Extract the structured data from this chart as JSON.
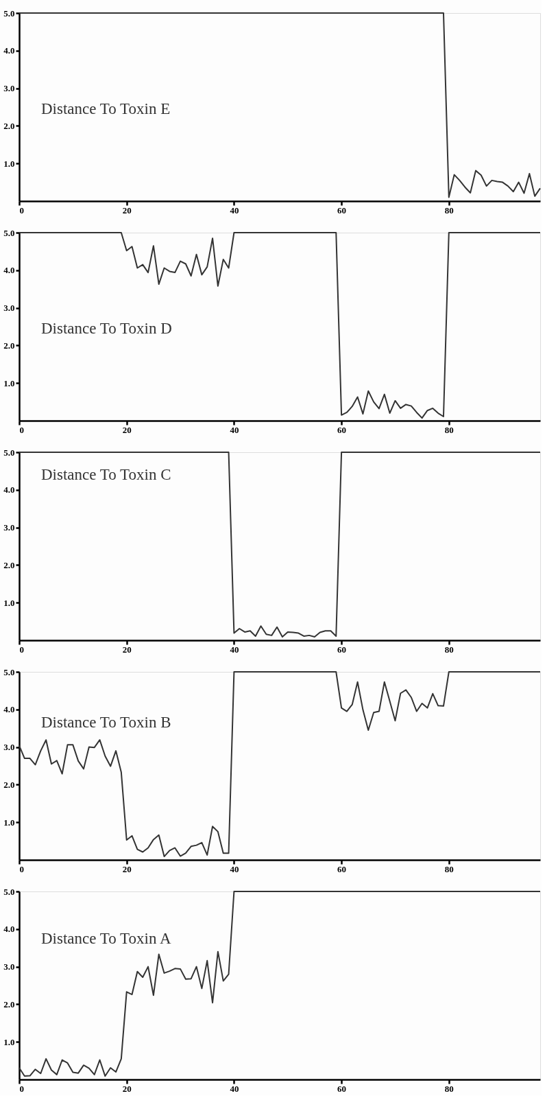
{
  "chart_data": [
    {
      "type": "line",
      "title": "Distance To Toxin E",
      "x": [
        0,
        1,
        2,
        3,
        4,
        5,
        6,
        7,
        8,
        9,
        10,
        11,
        12,
        13,
        14,
        15,
        16,
        17,
        18,
        19,
        20,
        21,
        22,
        23,
        24,
        25,
        26,
        27,
        28,
        29,
        30,
        31,
        32,
        33,
        34,
        35,
        36,
        37,
        38,
        39,
        40,
        41,
        42,
        43,
        44,
        45,
        46,
        47,
        48,
        49,
        50,
        51,
        52,
        53,
        54,
        55,
        56,
        57,
        58,
        59,
        60,
        61,
        62,
        63,
        64,
        65,
        66,
        67,
        68,
        69,
        70,
        71,
        72,
        73,
        74,
        75,
        76,
        77,
        78,
        79,
        80,
        81,
        82,
        83,
        84,
        85,
        86,
        87,
        88,
        89,
        90,
        91,
        92,
        93,
        94,
        95,
        96,
        97
      ],
      "series": [
        {
          "color": "#333333",
          "values": [
            5,
            5,
            5,
            5,
            5,
            5,
            5,
            5,
            5,
            5,
            5,
            5,
            5,
            5,
            5,
            5,
            5,
            5,
            5,
            5,
            5,
            5,
            5,
            5,
            5,
            5,
            5,
            5,
            5,
            5,
            5,
            5,
            5,
            5,
            5,
            5,
            5,
            5,
            5,
            5,
            5,
            5,
            5,
            5,
            5,
            5,
            5,
            5,
            5,
            5,
            5,
            5,
            5,
            5,
            5,
            5,
            5,
            5,
            5,
            5,
            5,
            5,
            5,
            5,
            5,
            5,
            5,
            5,
            5,
            5,
            5,
            5,
            5,
            5,
            5,
            5,
            5,
            5,
            5,
            5,
            0.1,
            0.7,
            0.55,
            0.37,
            0.22,
            0.81,
            0.69,
            0.4,
            0.55,
            0.52,
            0.5,
            0.4,
            0.25,
            0.5,
            0.21,
            0.73,
            0.13,
            0.34
          ]
        }
      ],
      "xlim": [
        0,
        97
      ],
      "ylim": [
        0,
        5
      ],
      "xticks": [
        0,
        20,
        40,
        60,
        80
      ],
      "yticks": [
        {
          "value": 1,
          "label": "1.0"
        },
        {
          "value": 2,
          "label": "2.0"
        },
        {
          "value": 3,
          "label": "3.0"
        },
        {
          "value": 4,
          "label": "4.0"
        },
        {
          "value": 5,
          "label": "5.0"
        }
      ]
    },
    {
      "type": "line",
      "title": "Distance To Toxin D",
      "x": [
        0,
        1,
        2,
        3,
        4,
        5,
        6,
        7,
        8,
        9,
        10,
        11,
        12,
        13,
        14,
        15,
        16,
        17,
        18,
        19,
        20,
        21,
        22,
        23,
        24,
        25,
        26,
        27,
        28,
        29,
        30,
        31,
        32,
        33,
        34,
        35,
        36,
        37,
        38,
        39,
        40,
        41,
        42,
        43,
        44,
        45,
        46,
        47,
        48,
        49,
        50,
        51,
        52,
        53,
        54,
        55,
        56,
        57,
        58,
        59,
        60,
        61,
        62,
        63,
        64,
        65,
        66,
        67,
        68,
        69,
        70,
        71,
        72,
        73,
        74,
        75,
        76,
        77,
        78,
        79,
        80,
        81,
        82,
        83,
        84,
        85,
        86,
        87,
        88,
        89,
        90,
        91,
        92,
        93,
        94,
        95,
        96,
        97
      ],
      "series": [
        {
          "color": "#333333",
          "values": [
            5,
            5,
            5,
            5,
            5,
            5,
            5,
            5,
            5,
            5,
            5,
            5,
            5,
            5,
            5,
            5,
            5,
            5,
            5,
            5,
            4.52,
            4.63,
            4.06,
            4.15,
            3.94,
            4.65,
            3.63,
            4.06,
            3.97,
            3.94,
            4.24,
            4.17,
            3.85,
            4.42,
            3.88,
            4.09,
            4.85,
            3.58,
            4.29,
            4.06,
            5,
            5,
            5,
            5,
            5,
            5,
            5,
            5,
            5,
            5,
            5,
            5,
            5,
            5,
            5,
            5,
            5,
            5,
            5,
            5,
            0.15,
            0.22,
            0.38,
            0.63,
            0.18,
            0.79,
            0.5,
            0.32,
            0.7,
            0.2,
            0.53,
            0.33,
            0.43,
            0.39,
            0.22,
            0.07,
            0.27,
            0.33,
            0.2,
            0.11,
            5,
            5,
            5,
            5,
            5,
            5,
            5,
            5,
            5,
            5,
            5,
            5,
            5,
            5,
            5,
            5,
            5,
            5
          ]
        }
      ],
      "xlim": [
        0,
        97
      ],
      "ylim": [
        0,
        5
      ],
      "xticks": [
        0,
        20,
        40,
        60,
        80
      ],
      "yticks": [
        {
          "value": 1,
          "label": "1.0"
        },
        {
          "value": 2,
          "label": "2.0"
        },
        {
          "value": 3,
          "label": "3.0"
        },
        {
          "value": 4,
          "label": "4.0"
        },
        {
          "value": 5,
          "label": "5.0"
        }
      ]
    },
    {
      "type": "line",
      "title": "Distance To Toxin C",
      "x": [
        0,
        1,
        2,
        3,
        4,
        5,
        6,
        7,
        8,
        9,
        10,
        11,
        12,
        13,
        14,
        15,
        16,
        17,
        18,
        19,
        20,
        21,
        22,
        23,
        24,
        25,
        26,
        27,
        28,
        29,
        30,
        31,
        32,
        33,
        34,
        35,
        36,
        37,
        38,
        39,
        40,
        41,
        42,
        43,
        44,
        45,
        46,
        47,
        48,
        49,
        50,
        51,
        52,
        53,
        54,
        55,
        56,
        57,
        58,
        59,
        60,
        61,
        62,
        63,
        64,
        65,
        66,
        67,
        68,
        69,
        70,
        71,
        72,
        73,
        74,
        75,
        76,
        77,
        78,
        79,
        80,
        81,
        82,
        83,
        84,
        85,
        86,
        87,
        88,
        89,
        90,
        91,
        92,
        93,
        94,
        95,
        96,
        97
      ],
      "series": [
        {
          "color": "#333333",
          "values": [
            5,
            5,
            5,
            5,
            5,
            5,
            5,
            5,
            5,
            5,
            5,
            5,
            5,
            5,
            5,
            5,
            5,
            5,
            5,
            5,
            5,
            5,
            5,
            5,
            5,
            5,
            5,
            5,
            5,
            5,
            5,
            5,
            5,
            5,
            5,
            5,
            5,
            5,
            5,
            5,
            0.19,
            0.31,
            0.22,
            0.25,
            0.11,
            0.38,
            0.16,
            0.13,
            0.35,
            0.09,
            0.22,
            0.21,
            0.19,
            0.11,
            0.13,
            0.09,
            0.21,
            0.25,
            0.25,
            0.11,
            5,
            5,
            5,
            5,
            5,
            5,
            5,
            5,
            5,
            5,
            5,
            5,
            5,
            5,
            5,
            5,
            5,
            5,
            5,
            5,
            5,
            5,
            5,
            5,
            5,
            5,
            5,
            5,
            5,
            5,
            5,
            5,
            5,
            5,
            5,
            5,
            5,
            5
          ]
        }
      ],
      "xlim": [
        0,
        97
      ],
      "ylim": [
        0,
        5
      ],
      "xticks": [
        0,
        20,
        40,
        60,
        80
      ],
      "yticks": [
        {
          "value": 1,
          "label": "1.0"
        },
        {
          "value": 2,
          "label": "2.0"
        },
        {
          "value": 3,
          "label": "3.0"
        },
        {
          "value": 4,
          "label": "4.0"
        },
        {
          "value": 5,
          "label": "5.0"
        }
      ]
    },
    {
      "type": "line",
      "title": "Distance To Toxin B",
      "x": [
        0,
        1,
        2,
        3,
        4,
        5,
        6,
        7,
        8,
        9,
        10,
        11,
        12,
        13,
        14,
        15,
        16,
        17,
        18,
        19,
        20,
        21,
        22,
        23,
        24,
        25,
        26,
        27,
        28,
        29,
        30,
        31,
        32,
        33,
        34,
        35,
        36,
        37,
        38,
        39,
        40,
        41,
        42,
        43,
        44,
        45,
        46,
        47,
        48,
        49,
        50,
        51,
        52,
        53,
        54,
        55,
        56,
        57,
        58,
        59,
        60,
        61,
        62,
        63,
        64,
        65,
        66,
        67,
        68,
        69,
        70,
        71,
        72,
        73,
        74,
        75,
        76,
        77,
        78,
        79,
        80,
        81,
        82,
        83,
        84,
        85,
        86,
        87,
        88,
        89,
        90,
        91,
        92,
        93,
        94,
        95,
        96,
        97
      ],
      "series": [
        {
          "color": "#333333",
          "values": [
            3.04,
            2.7,
            2.7,
            2.53,
            2.9,
            3.19,
            2.55,
            2.64,
            2.29,
            3.06,
            3.06,
            2.63,
            2.42,
            3.0,
            2.99,
            3.19,
            2.76,
            2.49,
            2.9,
            2.33,
            0.53,
            0.64,
            0.28,
            0.21,
            0.32,
            0.54,
            0.66,
            0.09,
            0.25,
            0.32,
            0.1,
            0.18,
            0.36,
            0.39,
            0.46,
            0.13,
            0.89,
            0.75,
            0.18,
            0.18,
            5,
            5,
            5,
            5,
            5,
            5,
            5,
            5,
            5,
            5,
            5,
            5,
            5,
            5,
            5,
            5,
            5,
            5,
            5,
            5,
            4.04,
            3.95,
            4.13,
            4.73,
            3.99,
            3.45,
            3.92,
            3.95,
            4.73,
            4.22,
            3.7,
            4.43,
            4.52,
            4.32,
            3.95,
            4.16,
            4.04,
            4.42,
            4.1,
            4.09,
            5,
            5,
            5,
            5,
            5,
            5,
            5,
            5,
            5,
            5,
            5,
            5,
            5,
            5,
            5,
            5,
            5,
            5
          ]
        }
      ],
      "xlim": [
        0,
        97
      ],
      "ylim": [
        0,
        5
      ],
      "xticks": [
        0,
        20,
        40,
        60,
        80
      ],
      "yticks": [
        {
          "value": 1,
          "label": "1.0"
        },
        {
          "value": 2,
          "label": "2.0"
        },
        {
          "value": 3,
          "label": "3.0"
        },
        {
          "value": 4,
          "label": "4.0"
        },
        {
          "value": 5,
          "label": "5.0"
        }
      ]
    },
    {
      "type": "line",
      "title": "Distance To Toxin A",
      "x": [
        0,
        1,
        2,
        3,
        4,
        5,
        6,
        7,
        8,
        9,
        10,
        11,
        12,
        13,
        14,
        15,
        16,
        17,
        18,
        19,
        20,
        21,
        22,
        23,
        24,
        25,
        26,
        27,
        28,
        29,
        30,
        31,
        32,
        33,
        34,
        35,
        36,
        37,
        38,
        39,
        40,
        41,
        42,
        43,
        44,
        45,
        46,
        47,
        48,
        49,
        50,
        51,
        52,
        53,
        54,
        55,
        56,
        57,
        58,
        59,
        60,
        61,
        62,
        63,
        64,
        65,
        66,
        67,
        68,
        69,
        70,
        71,
        72,
        73,
        74,
        75,
        76,
        77,
        78,
        79,
        80,
        81,
        82,
        83,
        84,
        85,
        86,
        87,
        88,
        89,
        90,
        91,
        92,
        93,
        94,
        95,
        96,
        97
      ],
      "series": [
        {
          "color": "#333333",
          "values": [
            0.31,
            0.09,
            0.1,
            0.27,
            0.16,
            0.55,
            0.25,
            0.13,
            0.52,
            0.44,
            0.19,
            0.17,
            0.38,
            0.3,
            0.13,
            0.52,
            0.09,
            0.31,
            0.2,
            0.55,
            2.33,
            2.26,
            2.87,
            2.72,
            3.0,
            2.24,
            3.33,
            2.83,
            2.88,
            2.95,
            2.94,
            2.67,
            2.68,
            3.0,
            2.42,
            3.16,
            2.04,
            3.4,
            2.62,
            2.8,
            5,
            5,
            5,
            5,
            5,
            5,
            5,
            5,
            5,
            5,
            5,
            5,
            5,
            5,
            5,
            5,
            5,
            5,
            5,
            5,
            5,
            5,
            5,
            5,
            5,
            5,
            5,
            5,
            5,
            5,
            5,
            5,
            5,
            5,
            5,
            5,
            5,
            5,
            5,
            5,
            5,
            5,
            5,
            5,
            5,
            5,
            5,
            5,
            5,
            5,
            5,
            5,
            5,
            5,
            5,
            5,
            5,
            5
          ]
        }
      ],
      "xlim": [
        0,
        97
      ],
      "ylim": [
        0,
        5
      ],
      "xticks": [
        0,
        20,
        40,
        60,
        80
      ],
      "yticks": [
        {
          "value": 1,
          "label": "1.0"
        },
        {
          "value": 2,
          "label": "2.0"
        },
        {
          "value": 3,
          "label": "3.0"
        },
        {
          "value": 4,
          "label": "4.0"
        },
        {
          "value": 5,
          "label": "5.0"
        }
      ]
    }
  ]
}
